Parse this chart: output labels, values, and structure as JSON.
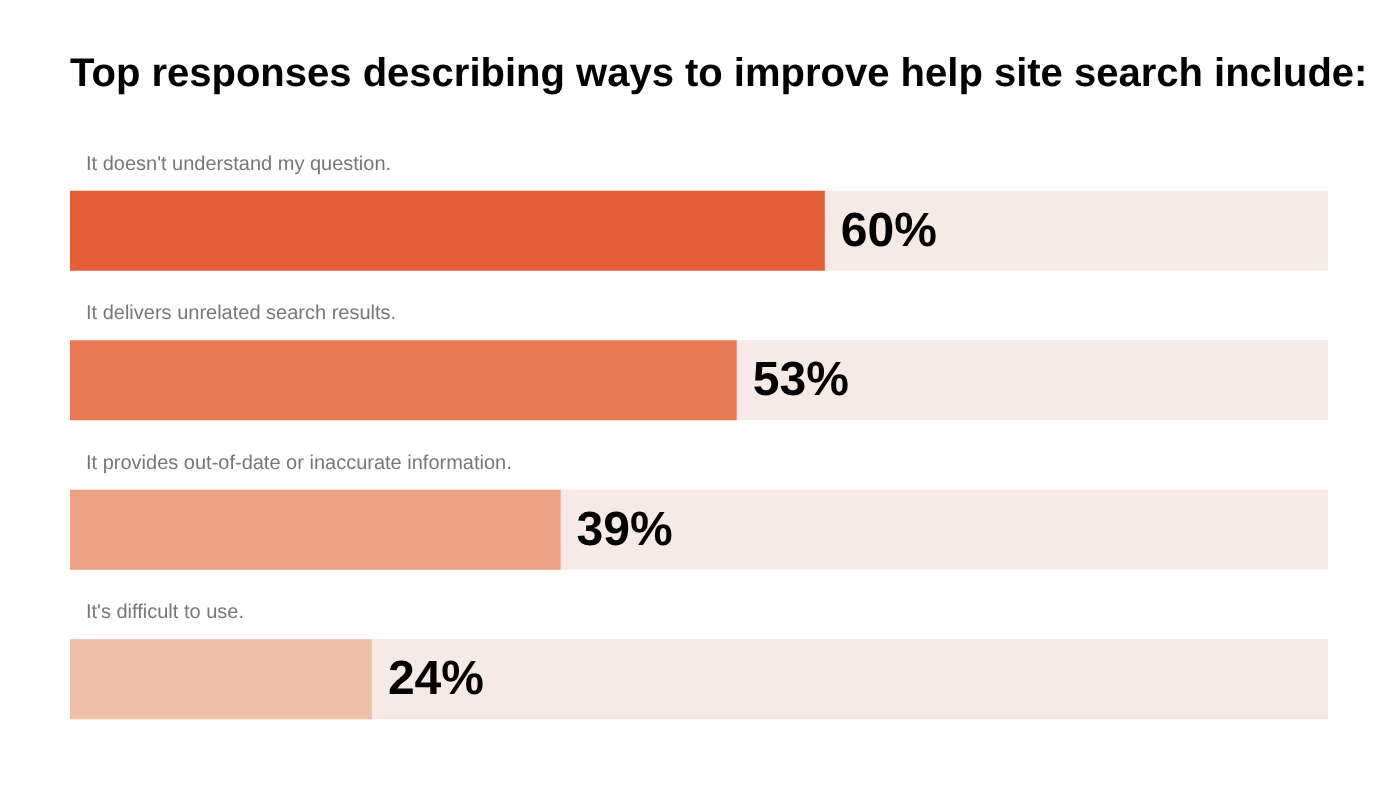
{
  "chart_data": {
    "type": "bar",
    "orientation": "horizontal",
    "title": "Top responses describing ways to improve help site search include:",
    "categories": [
      "It doesn't understand my question.",
      "It delivers unrelated search results.",
      "It provides out-of-date or inaccurate information.",
      "It's difficult to use."
    ],
    "values": [
      60,
      53,
      39,
      24
    ],
    "colors": [
      "#e45e37",
      "#e97b55",
      "#eca283",
      "#f0bfa7"
    ],
    "value_labels": [
      "60%",
      "53%",
      "39%",
      "24%"
    ],
    "xlim": [
      0,
      100
    ],
    "tick_labels": "y"
  }
}
